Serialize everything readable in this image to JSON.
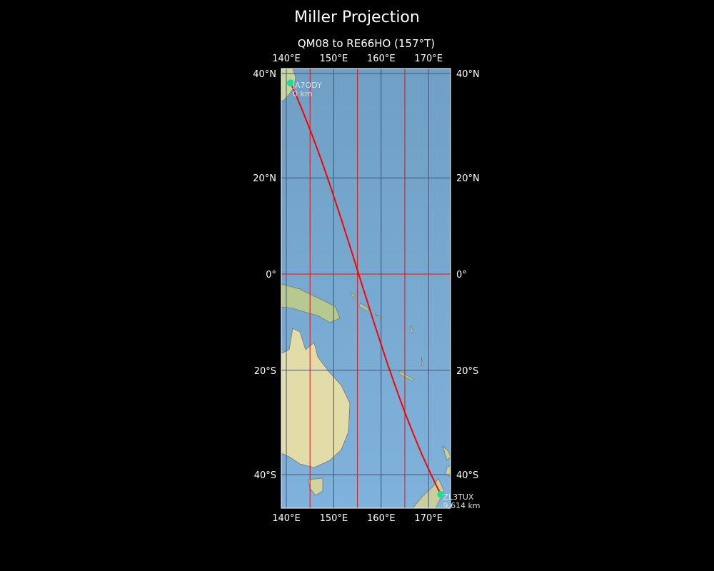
{
  "title": "Miller Projection",
  "subtitle": "QM08 to RE66HO (157°T)",
  "lon_ticks": [
    "140°E",
    "150°E",
    "160°E",
    "170°E"
  ],
  "lat_ticks": [
    "40°N",
    "20°N",
    "0°",
    "20°S",
    "40°S"
  ],
  "colors": {
    "path": "#ff0000",
    "marker": "#22dd99",
    "grid": "#aa2020",
    "equator": "#dd1010"
  },
  "endpoints": [
    {
      "call": "JA7ODY",
      "distance": "0 km",
      "lon": 140.9,
      "lat": 38.3
    },
    {
      "call": "ZL3TUX",
      "distance": "9,614 km",
      "lon": 172.6,
      "lat": -43.5
    }
  ]
}
